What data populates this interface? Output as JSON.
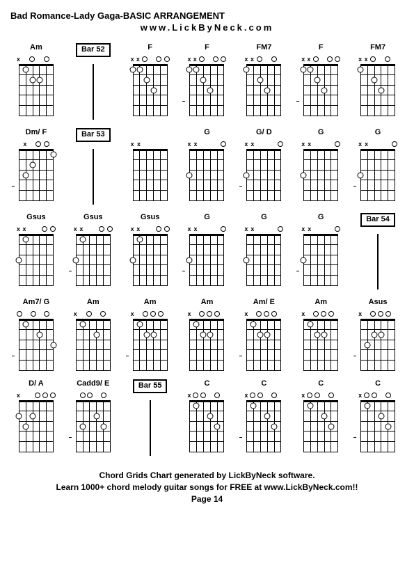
{
  "title": "Bad Romance-Lady Gaga-BASIC ARRANGEMENT",
  "subtitle": "www.LickByNeck.com",
  "footer_line1": "Chord Grids Chart generated by LickByNeck software.",
  "footer_line2": "Learn 1000+ chord melody guitar songs for FREE at www.LickByNeck.com!!",
  "page_label": "Page 14",
  "rows": [
    [
      {
        "type": "chord",
        "name": "Am",
        "markers": [
          "x",
          "e",
          "o",
          "e",
          "o",
          "e"
        ],
        "dots": [
          [
            1,
            1
          ],
          [
            2,
            3
          ],
          [
            2,
            2
          ]
        ],
        "tick": null
      },
      {
        "type": "bar",
        "name": "Bar 52"
      },
      {
        "type": "chord",
        "name": "F",
        "markers": [
          "x",
          "x",
          "o",
          "e",
          "o",
          "o"
        ],
        "dots": [
          [
            3,
            3
          ],
          [
            2,
            2
          ],
          [
            1,
            1
          ],
          [
            1,
            0
          ]
        ],
        "tick": null
      },
      {
        "type": "chord",
        "name": "F",
        "markers": [
          "x",
          "x",
          "o",
          "e",
          "o",
          "o"
        ],
        "dots": [
          [
            3,
            3
          ],
          [
            2,
            2
          ],
          [
            1,
            1
          ],
          [
            1,
            0
          ]
        ],
        "tick": 4
      },
      {
        "type": "chord",
        "name": "FM7",
        "markers": [
          "x",
          "x",
          "o",
          "e",
          "o",
          "e"
        ],
        "dots": [
          [
            3,
            3
          ],
          [
            2,
            2
          ],
          [
            1,
            0
          ]
        ],
        "tick": null
      },
      {
        "type": "chord",
        "name": "F",
        "markers": [
          "x",
          "x",
          "o",
          "e",
          "o",
          "o"
        ],
        "dots": [
          [
            3,
            3
          ],
          [
            2,
            2
          ],
          [
            1,
            1
          ],
          [
            1,
            0
          ]
        ],
        "tick": 4
      },
      {
        "type": "chord",
        "name": "FM7",
        "markers": [
          "x",
          "x",
          "o",
          "e",
          "o",
          "e"
        ],
        "dots": [
          [
            3,
            3
          ],
          [
            2,
            2
          ],
          [
            1,
            0
          ]
        ],
        "tick": null
      }
    ],
    [
      {
        "type": "chord",
        "name": "Dm/ F",
        "markers": [
          "e",
          "x",
          "e",
          "o",
          "o",
          "e"
        ],
        "dots": [
          [
            1,
            5
          ],
          [
            2,
            2
          ],
          [
            3,
            1
          ]
        ],
        "tick": 4
      },
      {
        "type": "bar",
        "name": "Bar 53"
      },
      {
        "type": "chord",
        "name": "",
        "markers": [
          "x",
          "x",
          "e",
          "e",
          "e",
          "e"
        ],
        "dots": [],
        "tick": null
      },
      {
        "type": "chord",
        "name": "G",
        "markers": [
          "x",
          "x",
          "e",
          "e",
          "e",
          "o"
        ],
        "dots": [
          [
            3,
            0
          ]
        ],
        "tick": null
      },
      {
        "type": "chord",
        "name": "G/ D",
        "markers": [
          "x",
          "x",
          "e",
          "e",
          "e",
          "o"
        ],
        "dots": [
          [
            3,
            0
          ]
        ],
        "tick": 4
      },
      {
        "type": "chord",
        "name": "G",
        "markers": [
          "x",
          "x",
          "e",
          "e",
          "e",
          "o"
        ],
        "dots": [
          [
            3,
            0
          ]
        ],
        "tick": null
      },
      {
        "type": "chord",
        "name": "G",
        "markers": [
          "x",
          "x",
          "e",
          "e",
          "e",
          "o"
        ],
        "dots": [
          [
            3,
            0
          ]
        ],
        "tick": 4
      }
    ],
    [
      {
        "type": "chord",
        "name": "Gsus",
        "markers": [
          "x",
          "x",
          "e",
          "e",
          "o",
          "o"
        ],
        "dots": [
          [
            1,
            1
          ],
          [
            3,
            0
          ]
        ],
        "tick": null
      },
      {
        "type": "chord",
        "name": "Gsus",
        "markers": [
          "x",
          "x",
          "e",
          "e",
          "o",
          "o"
        ],
        "dots": [
          [
            1,
            1
          ],
          [
            3,
            0
          ]
        ],
        "tick": 4
      },
      {
        "type": "chord",
        "name": "Gsus",
        "markers": [
          "x",
          "x",
          "e",
          "e",
          "o",
          "o"
        ],
        "dots": [
          [
            1,
            1
          ],
          [
            3,
            0
          ]
        ],
        "tick": null
      },
      {
        "type": "chord",
        "name": "G",
        "markers": [
          "x",
          "x",
          "e",
          "e",
          "e",
          "o"
        ],
        "dots": [
          [
            3,
            0
          ]
        ],
        "tick": 4
      },
      {
        "type": "chord",
        "name": "G",
        "markers": [
          "x",
          "x",
          "e",
          "e",
          "e",
          "o"
        ],
        "dots": [
          [
            3,
            0
          ]
        ],
        "tick": null
      },
      {
        "type": "chord",
        "name": "G",
        "markers": [
          "x",
          "x",
          "e",
          "e",
          "e",
          "o"
        ],
        "dots": [
          [
            3,
            0
          ]
        ],
        "tick": 4
      },
      {
        "type": "bar",
        "name": "Bar 54"
      }
    ],
    [
      {
        "type": "chord",
        "name": "Am7/ G",
        "markers": [
          "o",
          "e",
          "o",
          "e",
          "o",
          "e"
        ],
        "dots": [
          [
            3,
            5
          ],
          [
            2,
            3
          ],
          [
            1,
            1
          ]
        ],
        "tick": 4
      },
      {
        "type": "chord",
        "name": "Am",
        "markers": [
          "x",
          "e",
          "o",
          "e",
          "o",
          "e"
        ],
        "dots": [
          [
            2,
            3
          ],
          [
            1,
            1
          ]
        ],
        "tick": null
      },
      {
        "type": "chord",
        "name": "Am",
        "markers": [
          "x",
          "e",
          "o",
          "o",
          "o",
          "e"
        ],
        "dots": [
          [
            2,
            3
          ],
          [
            2,
            2
          ],
          [
            1,
            1
          ]
        ],
        "tick": 4
      },
      {
        "type": "chord",
        "name": "Am",
        "markers": [
          "x",
          "e",
          "o",
          "o",
          "o",
          "e"
        ],
        "dots": [
          [
            2,
            3
          ],
          [
            2,
            2
          ],
          [
            1,
            1
          ]
        ],
        "tick": null
      },
      {
        "type": "chord",
        "name": "Am/ E",
        "markers": [
          "x",
          "e",
          "o",
          "o",
          "o",
          "e"
        ],
        "dots": [
          [
            2,
            3
          ],
          [
            2,
            2
          ],
          [
            1,
            1
          ]
        ],
        "tick": 4
      },
      {
        "type": "chord",
        "name": "Am",
        "markers": [
          "x",
          "e",
          "o",
          "o",
          "o",
          "e"
        ],
        "dots": [
          [
            2,
            3
          ],
          [
            2,
            2
          ],
          [
            1,
            1
          ]
        ],
        "tick": null
      },
      {
        "type": "chord",
        "name": "Asus",
        "markers": [
          "x",
          "e",
          "o",
          "o",
          "o",
          "e"
        ],
        "dots": [
          [
            2,
            3
          ],
          [
            2,
            2
          ],
          [
            3,
            1
          ]
        ],
        "tick": 4
      }
    ],
    [
      {
        "type": "chord",
        "name": "D/ A",
        "markers": [
          "x",
          "e",
          "e",
          "o",
          "o",
          "o"
        ],
        "dots": [
          [
            2,
            2
          ],
          [
            3,
            1
          ],
          [
            2,
            0
          ]
        ],
        "tick": null
      },
      {
        "type": "chord",
        "name": "Cadd9/ E",
        "markers": [
          "e",
          "o",
          "o",
          "e",
          "o",
          "e"
        ],
        "dots": [
          [
            3,
            4
          ],
          [
            2,
            3
          ],
          [
            3,
            1
          ]
        ],
        "tick": 4
      },
      {
        "type": "bar",
        "name": "Bar 55"
      },
      {
        "type": "chord",
        "name": "C",
        "markers": [
          "x",
          "o",
          "o",
          "e",
          "o",
          "e"
        ],
        "dots": [
          [
            3,
            4
          ],
          [
            2,
            3
          ],
          [
            1,
            1
          ]
        ],
        "tick": null
      },
      {
        "type": "chord",
        "name": "C",
        "markers": [
          "x",
          "o",
          "o",
          "e",
          "o",
          "e"
        ],
        "dots": [
          [
            3,
            4
          ],
          [
            2,
            3
          ],
          [
            1,
            1
          ]
        ],
        "tick": 4
      },
      {
        "type": "chord",
        "name": "C",
        "markers": [
          "x",
          "o",
          "o",
          "e",
          "o",
          "e"
        ],
        "dots": [
          [
            3,
            4
          ],
          [
            2,
            3
          ],
          [
            1,
            1
          ]
        ],
        "tick": null
      },
      {
        "type": "chord",
        "name": "C",
        "markers": [
          "x",
          "o",
          "o",
          "e",
          "o",
          "e"
        ],
        "dots": [
          [
            3,
            4
          ],
          [
            2,
            3
          ],
          [
            1,
            1
          ]
        ],
        "tick": 4
      }
    ]
  ],
  "num_frets": 5,
  "num_strings": 6,
  "colors": {
    "background": "#ffffff",
    "line": "#000000"
  }
}
